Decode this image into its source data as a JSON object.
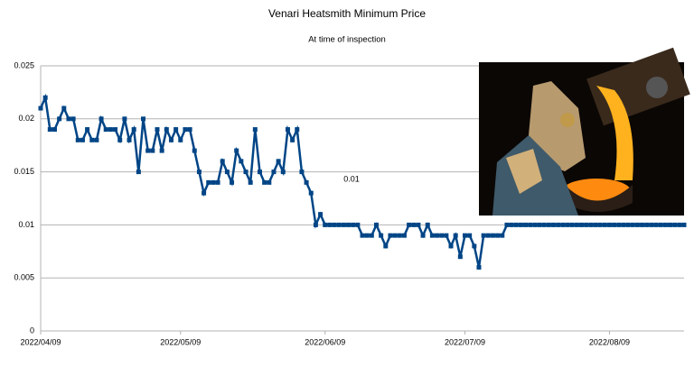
{
  "chart_data": {
    "type": "line",
    "title": "Venari Heatsmith Minimum Price",
    "subtitle": "At time of inspection",
    "annotation": "0.01",
    "x": [
      "2022/04/09",
      "2022/04/10",
      "2022/04/11",
      "2022/04/12",
      "2022/04/13",
      "2022/04/14",
      "2022/04/15",
      "2022/04/16",
      "2022/04/17",
      "2022/04/18",
      "2022/04/19",
      "2022/04/20",
      "2022/04/21",
      "2022/04/22",
      "2022/04/23",
      "2022/04/24",
      "2022/04/25",
      "2022/04/26",
      "2022/04/27",
      "2022/04/28",
      "2022/04/29",
      "2022/04/30",
      "2022/05/01",
      "2022/05/02",
      "2022/05/03",
      "2022/05/04",
      "2022/05/05",
      "2022/05/06",
      "2022/05/07",
      "2022/05/08",
      "2022/05/09",
      "2022/05/10",
      "2022/05/11",
      "2022/05/12",
      "2022/05/13",
      "2022/05/14",
      "2022/05/15",
      "2022/05/16",
      "2022/05/17",
      "2022/05/18",
      "2022/05/19",
      "2022/05/20",
      "2022/05/21",
      "2022/05/22",
      "2022/05/23",
      "2022/05/24",
      "2022/05/25",
      "2022/05/26",
      "2022/05/27",
      "2022/05/28",
      "2022/05/29",
      "2022/05/30",
      "2022/05/31",
      "2022/06/01",
      "2022/06/02",
      "2022/06/03",
      "2022/06/04",
      "2022/06/05",
      "2022/06/06",
      "2022/06/07",
      "2022/06/08",
      "2022/06/09",
      "2022/06/10",
      "2022/06/11",
      "2022/06/12",
      "2022/06/13",
      "2022/06/14",
      "2022/06/15",
      "2022/06/16",
      "2022/06/17",
      "2022/06/18",
      "2022/06/19",
      "2022/06/20",
      "2022/06/21",
      "2022/06/22",
      "2022/06/23",
      "2022/06/24",
      "2022/06/25",
      "2022/06/26",
      "2022/06/27",
      "2022/06/28",
      "2022/06/29",
      "2022/06/30",
      "2022/07/01",
      "2022/07/02",
      "2022/07/03",
      "2022/07/04",
      "2022/07/05",
      "2022/07/06",
      "2022/07/07",
      "2022/07/08",
      "2022/07/09",
      "2022/07/10",
      "2022/07/11",
      "2022/07/12",
      "2022/07/13",
      "2022/07/14",
      "2022/07/15",
      "2022/07/16",
      "2022/07/17",
      "2022/07/18",
      "2022/07/19",
      "2022/07/20",
      "2022/07/21",
      "2022/07/22",
      "2022/07/23",
      "2022/07/24",
      "2022/07/25",
      "2022/07/26",
      "2022/07/27",
      "2022/07/28",
      "2022/07/29",
      "2022/07/30",
      "2022/07/31",
      "2022/08/01",
      "2022/08/02",
      "2022/08/03",
      "2022/08/04",
      "2022/08/05",
      "2022/08/06",
      "2022/08/07",
      "2022/08/08",
      "2022/08/09",
      "2022/08/10",
      "2022/08/11",
      "2022/08/12",
      "2022/08/13",
      "2022/08/14",
      "2022/08/15",
      "2022/08/16",
      "2022/08/17",
      "2022/08/18",
      "2022/08/19",
      "2022/08/20",
      "2022/08/21",
      "2022/08/22",
      "2022/08/23",
      "2022/08/24",
      "2022/08/25"
    ],
    "series": [
      {
        "color": "#004586",
        "values": [
          0.021,
          0.022,
          0.019,
          0.019,
          0.02,
          0.021,
          0.02,
          0.02,
          0.018,
          0.018,
          0.019,
          0.018,
          0.018,
          0.02,
          0.019,
          0.019,
          0.019,
          0.018,
          0.02,
          0.018,
          0.019,
          0.015,
          0.02,
          0.017,
          0.017,
          0.019,
          0.017,
          0.019,
          0.018,
          0.019,
          0.018,
          0.019,
          0.019,
          0.017,
          0.015,
          0.013,
          0.014,
          0.014,
          0.014,
          0.016,
          0.015,
          0.014,
          0.017,
          0.016,
          0.015,
          0.014,
          0.019,
          0.015,
          0.014,
          0.014,
          0.015,
          0.016,
          0.015,
          0.019,
          0.018,
          0.019,
          0.015,
          0.014,
          0.013,
          0.01,
          0.011,
          0.01,
          0.01,
          0.01,
          0.01,
          0.01,
          0.01,
          0.01,
          0.01,
          0.009,
          0.009,
          0.009,
          0.01,
          0.009,
          0.008,
          0.009,
          0.009,
          0.009,
          0.009,
          0.01,
          0.01,
          0.01,
          0.009,
          0.01,
          0.009,
          0.009,
          0.009,
          0.009,
          0.008,
          0.009,
          0.007,
          0.009,
          0.009,
          0.008,
          0.006,
          0.009,
          0.009,
          0.009,
          0.009,
          0.009,
          0.01,
          0.01,
          0.01,
          0.01,
          0.01,
          0.01,
          0.01,
          0.01,
          0.01,
          0.01,
          0.01,
          0.01,
          0.01,
          0.01,
          0.01,
          0.01,
          0.01,
          0.01,
          0.01,
          0.01,
          0.01,
          0.01,
          0.01,
          0.01,
          0.01,
          0.01,
          0.01,
          0.01,
          0.01,
          0.01,
          0.01,
          0.01,
          0.01,
          0.01,
          0.01,
          0.01,
          0.01,
          0.01,
          0.01
        ]
      }
    ],
    "xlim": [
      "2022/04/09",
      "2022/08/25"
    ],
    "xticks": [
      "2022/04/09",
      "2022/05/09",
      "2022/06/09",
      "2022/07/09",
      "2022/08/09"
    ],
    "ylim": [
      0,
      0.025
    ],
    "yticks": [
      0,
      0.005,
      0.01,
      0.015,
      0.02,
      0.025
    ],
    "grid": true
  }
}
